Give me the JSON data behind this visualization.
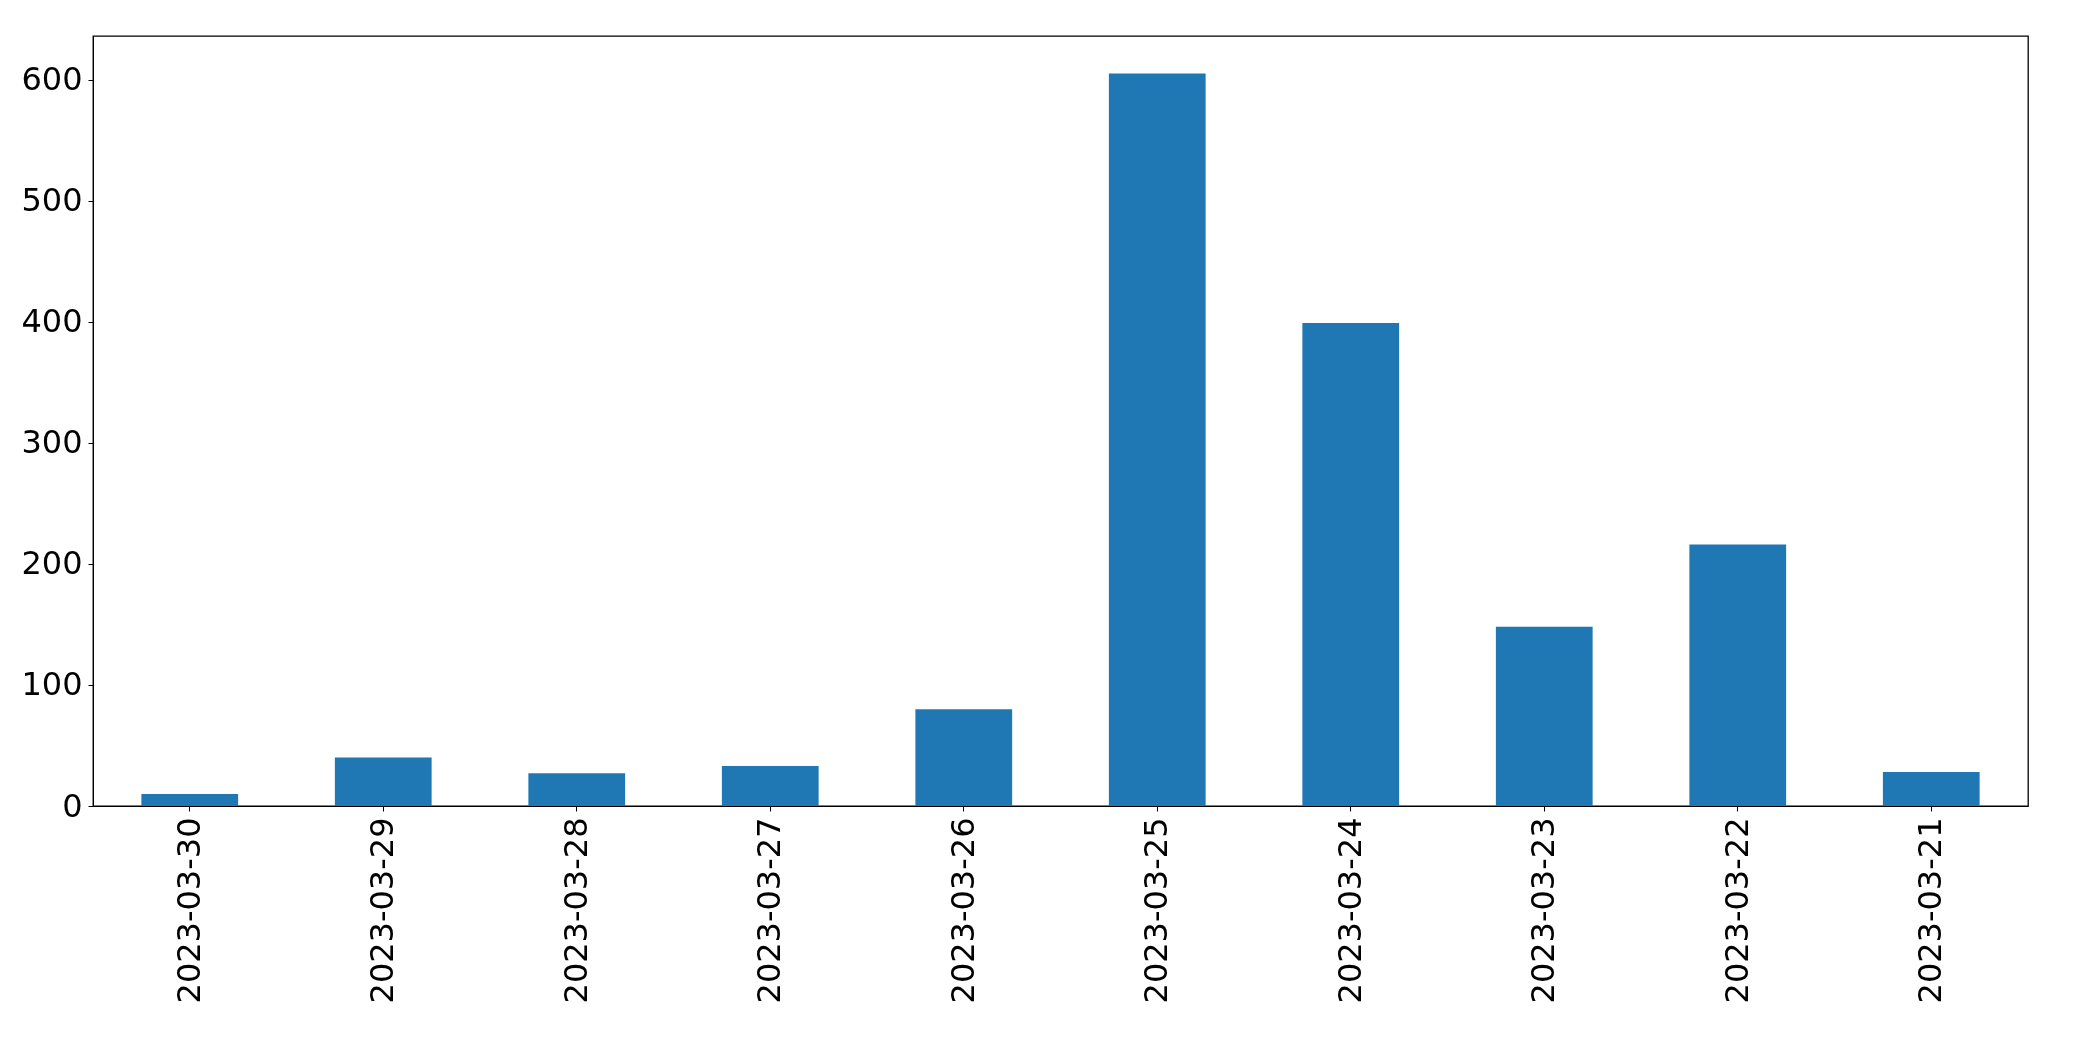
{
  "chart_data": {
    "type": "bar",
    "categories": [
      "2023-03-30",
      "2023-03-29",
      "2023-03-28",
      "2023-03-27",
      "2023-03-26",
      "2023-03-25",
      "2023-03-24",
      "2023-03-23",
      "2023-03-22",
      "2023-03-21"
    ],
    "values": [
      10,
      40,
      27,
      33,
      80,
      605,
      399,
      148,
      216,
      28
    ],
    "color": "#1f77b4",
    "ylim": [
      0,
      636
    ],
    "yticks": [
      0,
      100,
      200,
      300,
      400,
      500,
      600
    ],
    "grid": false
  }
}
